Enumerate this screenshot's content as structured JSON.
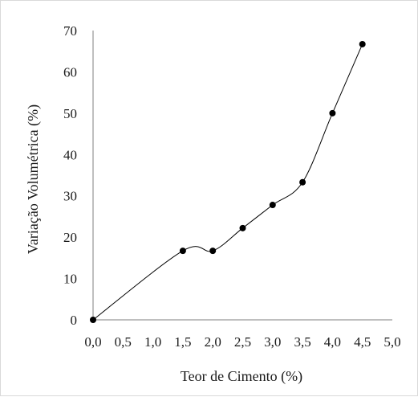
{
  "chart_data": {
    "type": "line",
    "title": "",
    "xlabel": "Teor de Cimento (%)",
    "ylabel": "Variação Volumétrica (%)",
    "xlim": [
      0,
      5
    ],
    "ylim": [
      0,
      70
    ],
    "x_ticks": [
      "0,0",
      "0,5",
      "1,0",
      "1,5",
      "2,0",
      "2,5",
      "3,0",
      "3,5",
      "4,0",
      "4,5",
      "5,0"
    ],
    "y_ticks": [
      "0",
      "10",
      "20",
      "30",
      "40",
      "50",
      "60",
      "70"
    ],
    "grid": false,
    "legend": "none",
    "smooth": true,
    "series": [
      {
        "x": [
          0.0,
          1.5,
          2.0,
          2.5,
          3.0,
          3.5,
          4.0,
          4.5
        ],
        "y": [
          0.0,
          16.7,
          16.7,
          22.2,
          27.8,
          33.3,
          50.0,
          66.7
        ]
      }
    ],
    "colors": {
      "line": "#000000",
      "marker": "#000000",
      "axis": "#7f7f7f",
      "frame": "#d9d9d9"
    }
  }
}
